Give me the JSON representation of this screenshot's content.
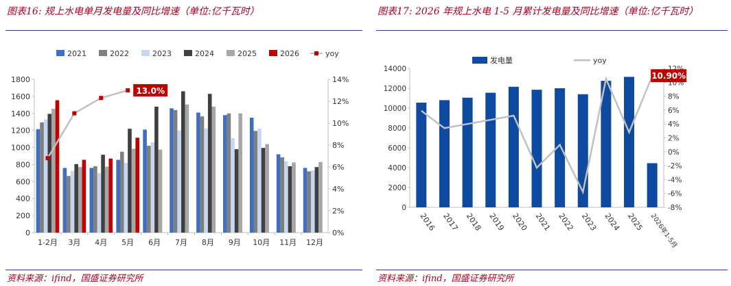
{
  "left": {
    "title": "图表16: 规上水电单月发电量及同比增速（单位:亿千瓦时）",
    "source": "资料来源：ifind，国盛证券研究所",
    "chart_data": {
      "type": "bar",
      "categories": [
        "1-2月",
        "3月",
        "4月",
        "5月",
        "6月",
        "7月",
        "8月",
        "9月",
        "10月",
        "11月",
        "12月"
      ],
      "series": [
        {
          "name": "2021",
          "color": "#3f6fbf",
          "values": [
            1215,
            760,
            760,
            855,
            1210,
            1460,
            1410,
            1380,
            1350,
            920,
            760
          ]
        },
        {
          "name": "2022",
          "color": "#7f7f7f",
          "values": [
            1295,
            665,
            780,
            950,
            1020,
            1440,
            1365,
            1400,
            1195,
            885,
            720
          ]
        },
        {
          "name": "2023",
          "color": "#c6d7ef",
          "values": [
            1330,
            725,
            700,
            820,
            1060,
            1200,
            1225,
            1110,
            1220,
            840,
            730
          ]
        },
        {
          "name": "2024",
          "color": "#404040",
          "values": [
            1395,
            805,
            915,
            1220,
            1480,
            1660,
            1630,
            980,
            995,
            780,
            770
          ]
        },
        {
          "name": "2025",
          "color": "#a6a6a6",
          "values": [
            1455,
            770,
            775,
            985,
            975,
            1505,
            1480,
            1400,
            1040,
            825,
            830
          ]
        },
        {
          "name": "2026",
          "color": "#c00000",
          "values": [
            1555,
            855,
            870,
            1115,
            null,
            null,
            null,
            null,
            null,
            null,
            null
          ]
        }
      ],
      "yoy": {
        "name": "yoy",
        "color": "#c0c0c0",
        "marker_color": "#c00000",
        "values": [
          6.8,
          10.9,
          12.3,
          13.0
        ]
      },
      "yoy_label": "13.0%",
      "y_left": {
        "min": 0,
        "max": 1800,
        "step": 200
      },
      "y_right": {
        "min": 0,
        "max": 14,
        "step": 2,
        "suffix": "%"
      },
      "legend": "top"
    }
  },
  "right": {
    "title": "图表17: 2026 年规上水电 1-5 月累计发电量及同比增速（单位:亿千瓦时）",
    "source": "资料来源：ifind，国盛证券研究所",
    "chart_data": {
      "type": "bar",
      "categories": [
        "2016",
        "2017",
        "2018",
        "2019",
        "2020",
        "2021",
        "2022",
        "2023",
        "2024",
        "2025",
        "2026年1-5月"
      ],
      "series": [
        {
          "name": "发电量",
          "color": "#0e4aa0",
          "values": [
            10550,
            10800,
            11050,
            11550,
            12150,
            11850,
            12000,
            11400,
            12750,
            13150,
            4450
          ]
        }
      ],
      "yoy": {
        "name": "yoy",
        "color": "#c0c0c0",
        "values": [
          5.9,
          3.4,
          4.0,
          4.6,
          5.2,
          -2.3,
          1.0,
          -5.8,
          10.5,
          2.8,
          10.9
        ]
      },
      "yoy_label": "10.90%",
      "y_left": {
        "min": 0,
        "max": 14000,
        "step": 2000
      },
      "y_right": {
        "min": -8,
        "max": 12,
        "step": 2,
        "suffix": "%"
      },
      "legend": "top"
    }
  }
}
